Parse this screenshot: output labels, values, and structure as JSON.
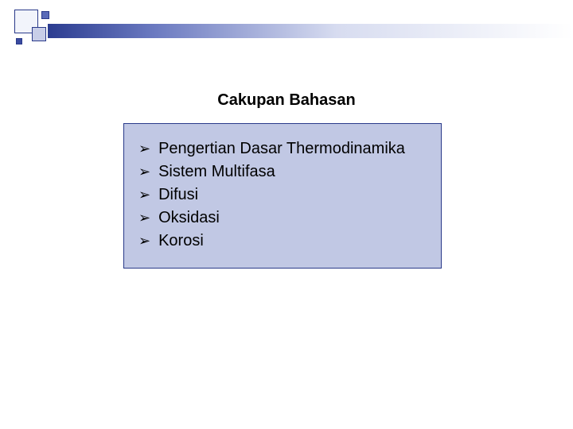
{
  "slide": {
    "title": "Cakupan Bahasan",
    "background_color": "#ffffff",
    "title_fontsize": 20,
    "title_color": "#000000"
  },
  "decoration": {
    "gradient_colors": [
      "#2b3c90",
      "#6a79c0",
      "#d7dcf0",
      "#ffffff"
    ],
    "square_colors": [
      "#f2f4fb",
      "#c8cee8",
      "#5a6bb8",
      "#3a4aa0"
    ],
    "square_border": "#2a3a8a"
  },
  "content_box": {
    "background_color": "#c1c8e4",
    "border_color": "#2a3a8a",
    "bullet_glyph": "➢",
    "item_fontsize": 20,
    "item_color": "#000000",
    "items": [
      "Pengertian Dasar Thermodinamika",
      "Sistem Multifasa",
      "Difusi",
      "Oksidasi",
      "Korosi"
    ]
  }
}
